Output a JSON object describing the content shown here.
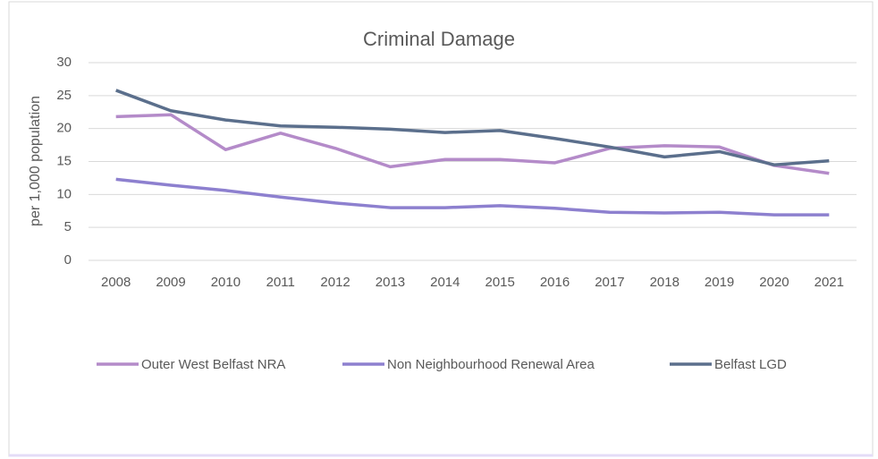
{
  "chart_data": {
    "type": "line",
    "title": "Criminal Damage",
    "y_label": "per 1,000 population",
    "categories": [
      "2008",
      "2009",
      "2010",
      "2011",
      "2012",
      "2013",
      "2014",
      "2015",
      "2016",
      "2017",
      "2018",
      "2019",
      "2020",
      "2021"
    ],
    "series": [
      {
        "name": "Outer West Belfast NRA",
        "color": "#b48bc9",
        "values": [
          21.8,
          22.1,
          16.8,
          19.3,
          17,
          14.2,
          15.3,
          15.3,
          14.8,
          17,
          17.4,
          17.2,
          14.4,
          13.2
        ]
      },
      {
        "name": "Non Neighbourhood Renewal Area",
        "color": "#8d80cf",
        "values": [
          12.3,
          11.4,
          10.6,
          9.6,
          8.7,
          8,
          8,
          8.3,
          7.9,
          7.3,
          7.2,
          7.3,
          6.9,
          6.9
        ]
      },
      {
        "name": "Belfast LGD",
        "color": "#5b6f8c",
        "values": [
          25.8,
          22.7,
          21.3,
          20.4,
          20.2,
          19.9,
          19.4,
          19.7,
          18.5,
          17.2,
          15.7,
          16.5,
          14.5,
          15.1
        ]
      }
    ],
    "ylim": [
      0,
      30
    ],
    "yticks": [
      0,
      5,
      10,
      15,
      20,
      25,
      30
    ],
    "grid": true,
    "legend": "bottom"
  }
}
